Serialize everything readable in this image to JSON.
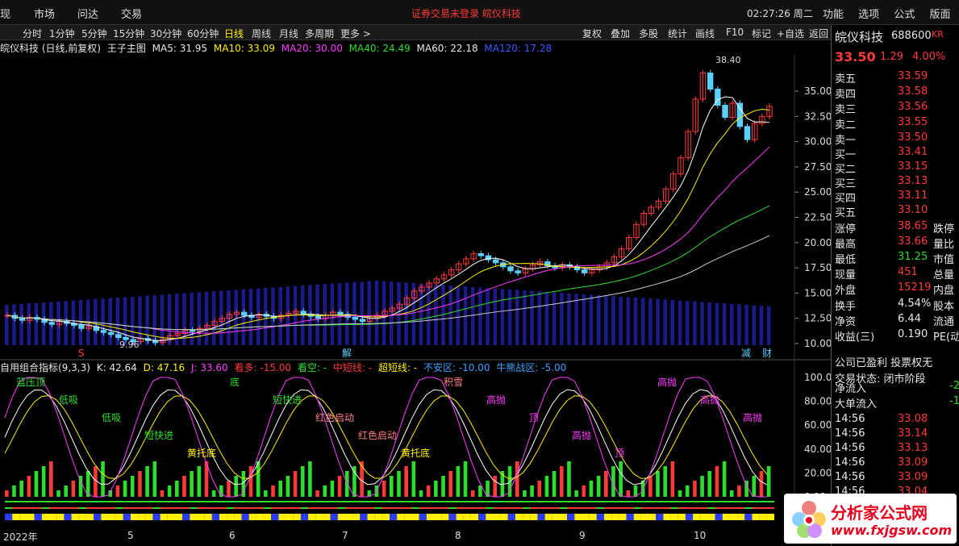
{
  "menu": {
    "m0": "现",
    "m1": "市场",
    "m2": "问达",
    "m3": "交易",
    "notice": "证券交易未登录  皖仪科技",
    "clock": "02:27:26 周二",
    "r1": "功能",
    "r2": "选项",
    "r3": "公式",
    "r4": "版面"
  },
  "periods": [
    "分时",
    "1分钟",
    "5分钟",
    "15分钟",
    "30分钟",
    "60分钟",
    "日线",
    "周线",
    "月线",
    "多周期",
    "更多 >"
  ],
  "tools": [
    "复权",
    "叠加",
    "多股",
    "统计",
    "画线",
    "F10",
    "标记",
    "+自选",
    "返回"
  ],
  "mainhdr": {
    "stock": "皖仪科技 (日线,前复权)",
    "indicator": "王子主图",
    "ma5": "MA5: 31.95",
    "ma10": "MA10: 33.09",
    "ma20": "MA20: 30.00",
    "ma40": "MA40: 24.49",
    "ma60": "MA60: 22.18",
    "ma120": "MA120: 17.28"
  },
  "indhdr": {
    "name": "自用组合指标(9,3,3)",
    "k": "K: 42.64",
    "d": "D: 47.16",
    "j": "J: 33.60",
    "kanduo": "看多: -15.00",
    "kankong": "看空: -",
    "zhongduan": "中短线: -",
    "chaoduan": "超短线: -",
    "buanqu": "不安区: -10.00",
    "niuxiong": "牛熊战区: -5.00"
  },
  "price_ticks": [
    "35.00",
    "32.50",
    "30.00",
    "27.50",
    "25.00",
    "22.50",
    "20.00",
    "17.50",
    "15.00",
    "12.50",
    "10.00"
  ],
  "ind_ticks": [
    "100.0",
    "80.00",
    "60.00",
    "40.00",
    "20.00",
    "0.00"
  ],
  "annot": {
    "high": "38.40",
    "low": "9.96",
    "s": "S",
    "jie": "解",
    "jian": "减",
    "cai": "财"
  },
  "signals": [
    "蓝压顶",
    "低吸",
    "低吸",
    "短快进",
    "黄托底",
    "底",
    "短快进",
    "红色启动",
    "红色启动",
    "黄托底",
    "积雪",
    "高抛",
    "顶",
    "高抛",
    "顶",
    "高抛",
    "高抛",
    "高抛"
  ],
  "months": [
    "2022年",
    "5",
    "6",
    "7",
    "8",
    "9",
    "10"
  ],
  "quote": {
    "name": "皖仪科技",
    "code": "688600",
    "kr": "KR",
    "price": "33.50",
    "chg": "1.29",
    "pct": "4.00%"
  },
  "asks": [
    {
      "l": "卖五",
      "p": "33.59"
    },
    {
      "l": "卖四",
      "p": "33.58"
    },
    {
      "l": "卖三",
      "p": "33.56"
    },
    {
      "l": "卖二",
      "p": "33.55"
    },
    {
      "l": "卖一",
      "p": "33.50"
    }
  ],
  "bids": [
    {
      "l": "买一",
      "p": "33.41"
    },
    {
      "l": "买二",
      "p": "33.15"
    },
    {
      "l": "买三",
      "p": "33.13"
    },
    {
      "l": "买四",
      "p": "33.11"
    },
    {
      "l": "买五",
      "p": "33.10"
    }
  ],
  "stats": [
    {
      "l": "涨停",
      "v": "38.65",
      "r": "跌停"
    },
    {
      "l": "最高",
      "v": "33.66",
      "r": "量比"
    },
    {
      "l": "最低",
      "v": "31.25",
      "r": "市值"
    },
    {
      "l": "现量",
      "v": "451",
      "r": "总量"
    },
    {
      "l": "外盘",
      "v": "15219",
      "r": "内盘"
    }
  ],
  "stats2": [
    {
      "l": "换手",
      "v": "4.54%",
      "r": "股本"
    },
    {
      "l": "净资",
      "v": "6.44",
      "r": "流通"
    },
    {
      "l": "收益(三)",
      "v": "0.190",
      "r": "PE(动"
    }
  ],
  "status": {
    "s1": "公司已盈利 投票权无",
    "s2": "交易状态: 闭市阶段"
  },
  "flow": [
    {
      "l": "净流入",
      "v": "-2"
    },
    {
      "l": "大单流入",
      "v": "-1"
    }
  ],
  "ticks": [
    {
      "t": "14:56",
      "p": "33.08"
    },
    {
      "t": "14:56",
      "p": "33.14"
    },
    {
      "t": "14:56",
      "p": "33.13"
    },
    {
      "t": "14:56",
      "p": "33.09"
    },
    {
      "t": "14:56",
      "p": "33.09"
    },
    {
      "t": "14:56",
      "p": "33.04"
    }
  ],
  "logo": {
    "l1": "分析家公式网",
    "l2": "www.fxjgsw.com"
  },
  "chart_data": {
    "type": "candlestick",
    "price_axis": [
      10.0,
      35.0
    ],
    "high": 38.4,
    "low": 9.96,
    "closes": [
      12.8,
      12.5,
      12.3,
      12.6,
      12.4,
      12.1,
      11.9,
      12.2,
      12.0,
      11.8,
      11.5,
      11.7,
      11.3,
      11.1,
      10.9,
      10.6,
      10.4,
      10.2,
      10.5,
      10.3,
      10.1,
      10.4,
      10.8,
      11.0,
      11.3,
      11.2,
      11.5,
      11.8,
      12.2,
      12.5,
      12.9,
      13.1,
      12.8,
      12.6,
      12.9,
      12.7,
      12.5,
      12.8,
      13.0,
      13.2,
      12.9,
      12.7,
      12.5,
      12.8,
      13.1,
      12.9,
      12.6,
      12.4,
      12.2,
      12.5,
      12.8,
      13.2,
      13.5,
      13.9,
      14.5,
      15.2,
      15.6,
      16.0,
      16.4,
      16.8,
      17.3,
      17.9,
      18.4,
      18.9,
      18.7,
      18.3,
      18.0,
      17.6,
      17.2,
      17.0,
      17.4,
      17.8,
      18.1,
      17.7,
      17.5,
      17.8,
      17.6,
      17.3,
      17.0,
      17.3,
      17.6,
      18.0,
      18.6,
      19.4,
      20.5,
      21.8,
      22.9,
      23.5,
      24.1,
      25.3,
      26.8,
      28.4,
      31.0,
      34.2,
      36.8,
      35.2,
      33.6,
      32.4,
      33.8,
      31.5,
      30.2,
      31.8,
      32.5,
      33.5
    ],
    "ind_axis": [
      0,
      100
    ],
    "K": 42.64,
    "D": 47.16,
    "J": 33.6
  }
}
